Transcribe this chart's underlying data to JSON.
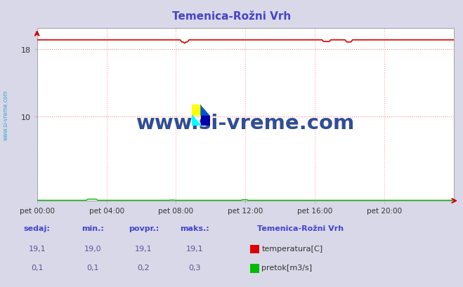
{
  "title": "Temenica-Rožni Vrh",
  "title_color": "#4444cc",
  "bg_color": "#d8d8e8",
  "plot_bg_color": "#ffffff",
  "grid_color_h": "#ff8888",
  "grid_color_v": "#ffaaaa",
  "x_min": 0,
  "x_max": 288,
  "y_min": 0,
  "y_max": 20.5,
  "yticks": [
    10,
    18
  ],
  "x_tick_positions": [
    0,
    48,
    96,
    144,
    192,
    240
  ],
  "x_tick_labels": [
    "pet 00:00",
    "pet 04:00",
    "pet 08:00",
    "pet 12:00",
    "pet 16:00",
    "pet 20:00"
  ],
  "temp_value": 19.1,
  "temp_color": "#dd0000",
  "flow_value": 0.1,
  "flow_color": "#00bb00",
  "watermark": "www.si-vreme.com",
  "watermark_color": "#1a3a8a",
  "sidebar_text": "www.si-vreme.com",
  "sidebar_color": "#33aacc",
  "legend_title": "Temenica-Rožni Vrh",
  "legend_title_color": "#4444cc",
  "legend_items": [
    "temperatura[C]",
    "pretok[m3/s]"
  ],
  "legend_colors": [
    "#dd0000",
    "#00bb00"
  ],
  "table_headers": [
    "sedaj:",
    "min.:",
    "povpr.:",
    "maks.:"
  ],
  "table_temp": [
    "19,1",
    "19,0",
    "19,1",
    "19,1"
  ],
  "table_flow": [
    "0,1",
    "0,1",
    "0,2",
    "0,3"
  ],
  "table_color": "#4444cc",
  "table_value_color": "#555599",
  "spine_color": "#aaaaaa",
  "arrow_color": "#cc0000"
}
